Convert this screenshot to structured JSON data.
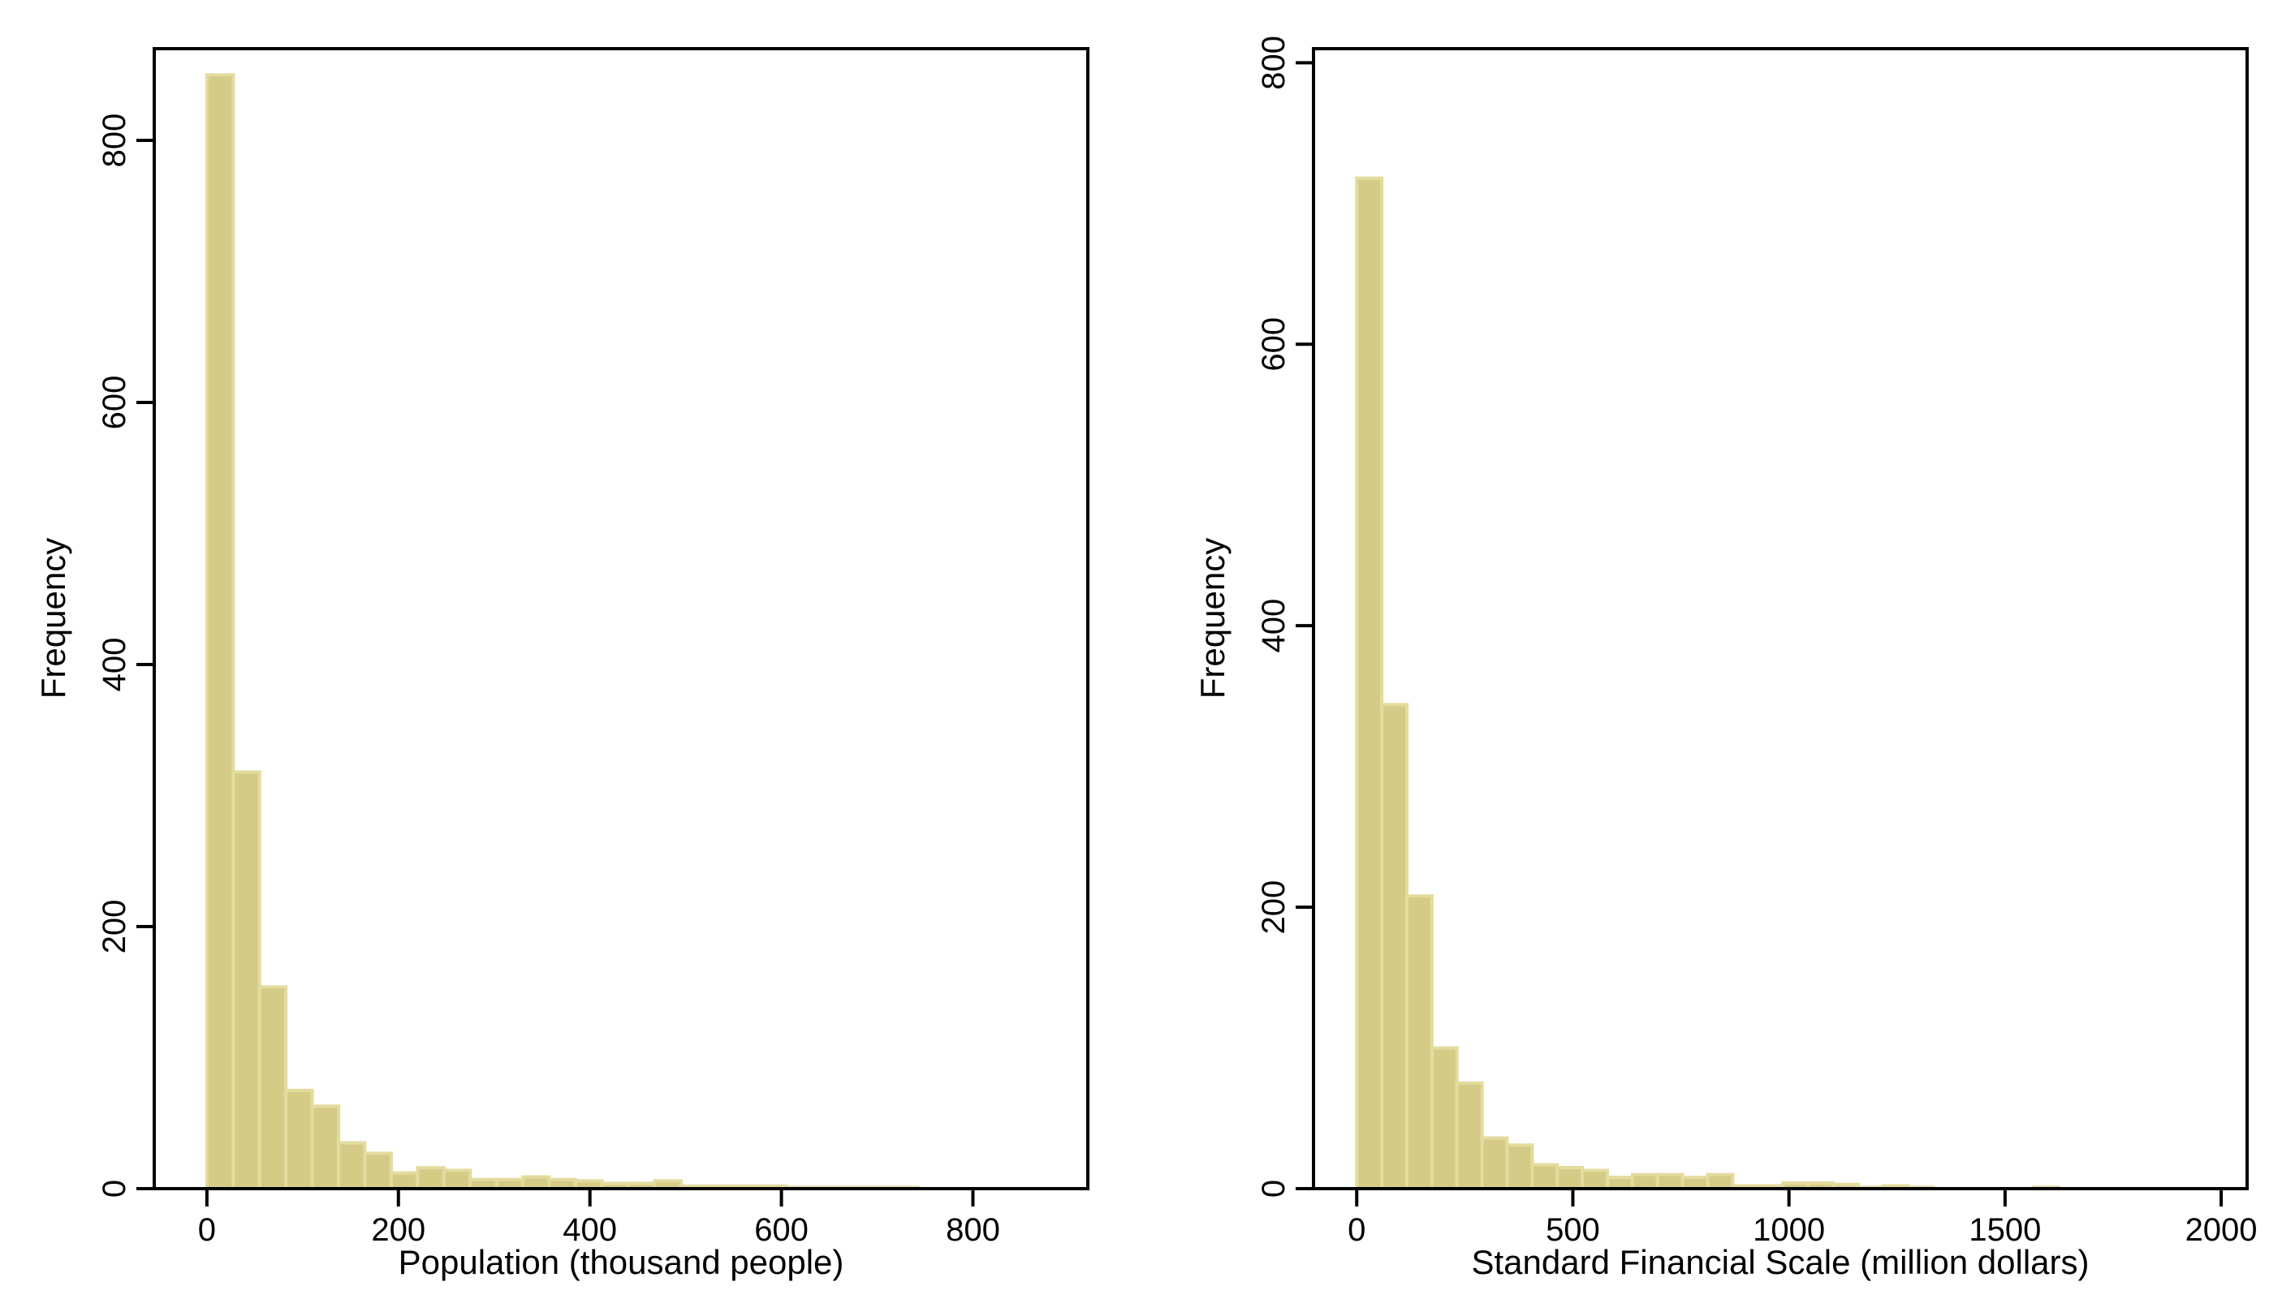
{
  "chart_data": [
    {
      "type": "bar",
      "xlabel": "Population (thousand people)",
      "ylabel": "Frequency",
      "xlim": [
        -55,
        920
      ],
      "ylim": [
        0,
        870
      ],
      "xticks": [
        0,
        200,
        400,
        600,
        800
      ],
      "yticks": [
        0,
        200,
        400,
        600,
        800
      ],
      "grid": false,
      "bar_color": "#d4cc86",
      "bar_edge_color": "#e3dc9e",
      "bin_width": 27.5,
      "bin_start": 0,
      "values": [
        850,
        318,
        154,
        75,
        63,
        35,
        27,
        12,
        16,
        14,
        7,
        7,
        9,
        7,
        6,
        4,
        4,
        6,
        2,
        2,
        2,
        2,
        1,
        1,
        1,
        1,
        1,
        0,
        0,
        0,
        0,
        0
      ]
    },
    {
      "type": "bar",
      "xlabel": "Standard Financial Scale (million dollars)",
      "ylabel": "Frequency",
      "xlim": [
        -100,
        2060
      ],
      "ylim": [
        0,
        810
      ],
      "xticks": [
        0,
        500,
        1000,
        1500,
        2000
      ],
      "yticks": [
        0,
        200,
        400,
        600,
        800
      ],
      "grid": false,
      "bar_color": "#d4cc86",
      "bar_edge_color": "#e3dc9e",
      "bin_width": 58,
      "bin_start": 0,
      "values": [
        718,
        344,
        208,
        100,
        75,
        36,
        31,
        17,
        15,
        13,
        8,
        10,
        10,
        8,
        10,
        2,
        2,
        4,
        4,
        3,
        1,
        2,
        1,
        0,
        0,
        0,
        0,
        1,
        0,
        0,
        0,
        0,
        0
      ]
    }
  ]
}
